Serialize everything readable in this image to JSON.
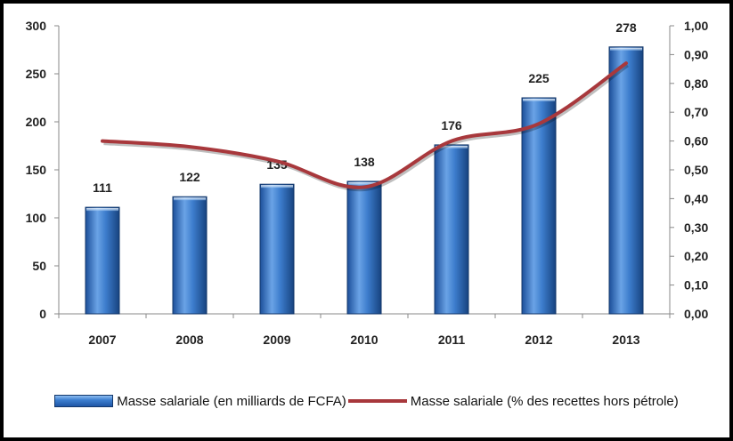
{
  "chart_data": {
    "type": "bar",
    "categories": [
      "2007",
      "2008",
      "2009",
      "2010",
      "2011",
      "2012",
      "2013"
    ],
    "series": [
      {
        "name": "Masse salariale (en milliards de FCFA)",
        "type": "bar",
        "axis": "left",
        "values": [
          111,
          122,
          135,
          138,
          176,
          225,
          278
        ],
        "labels": [
          "111",
          "122",
          "135",
          "138",
          "176",
          "225",
          "278"
        ],
        "color": "#2e6cc0"
      },
      {
        "name": "Masse salariale (% des recettes hors pétrole)",
        "type": "line",
        "axis": "right",
        "values": [
          0.6,
          0.58,
          0.53,
          0.44,
          0.6,
          0.66,
          0.87
        ],
        "color": "#a8383c"
      }
    ],
    "y_left": {
      "min": 0,
      "max": 300,
      "step": 50,
      "ticks": [
        "0",
        "50",
        "100",
        "150",
        "200",
        "250",
        "300"
      ]
    },
    "y_right": {
      "min": 0,
      "max": 1,
      "step": 0.1,
      "ticks": [
        "0,00",
        "0,10",
        "0,20",
        "0,30",
        "0,40",
        "0,50",
        "0,60",
        "0,70",
        "0,80",
        "0,90",
        "1,00"
      ]
    },
    "grid": false,
    "legend_position": "bottom"
  }
}
